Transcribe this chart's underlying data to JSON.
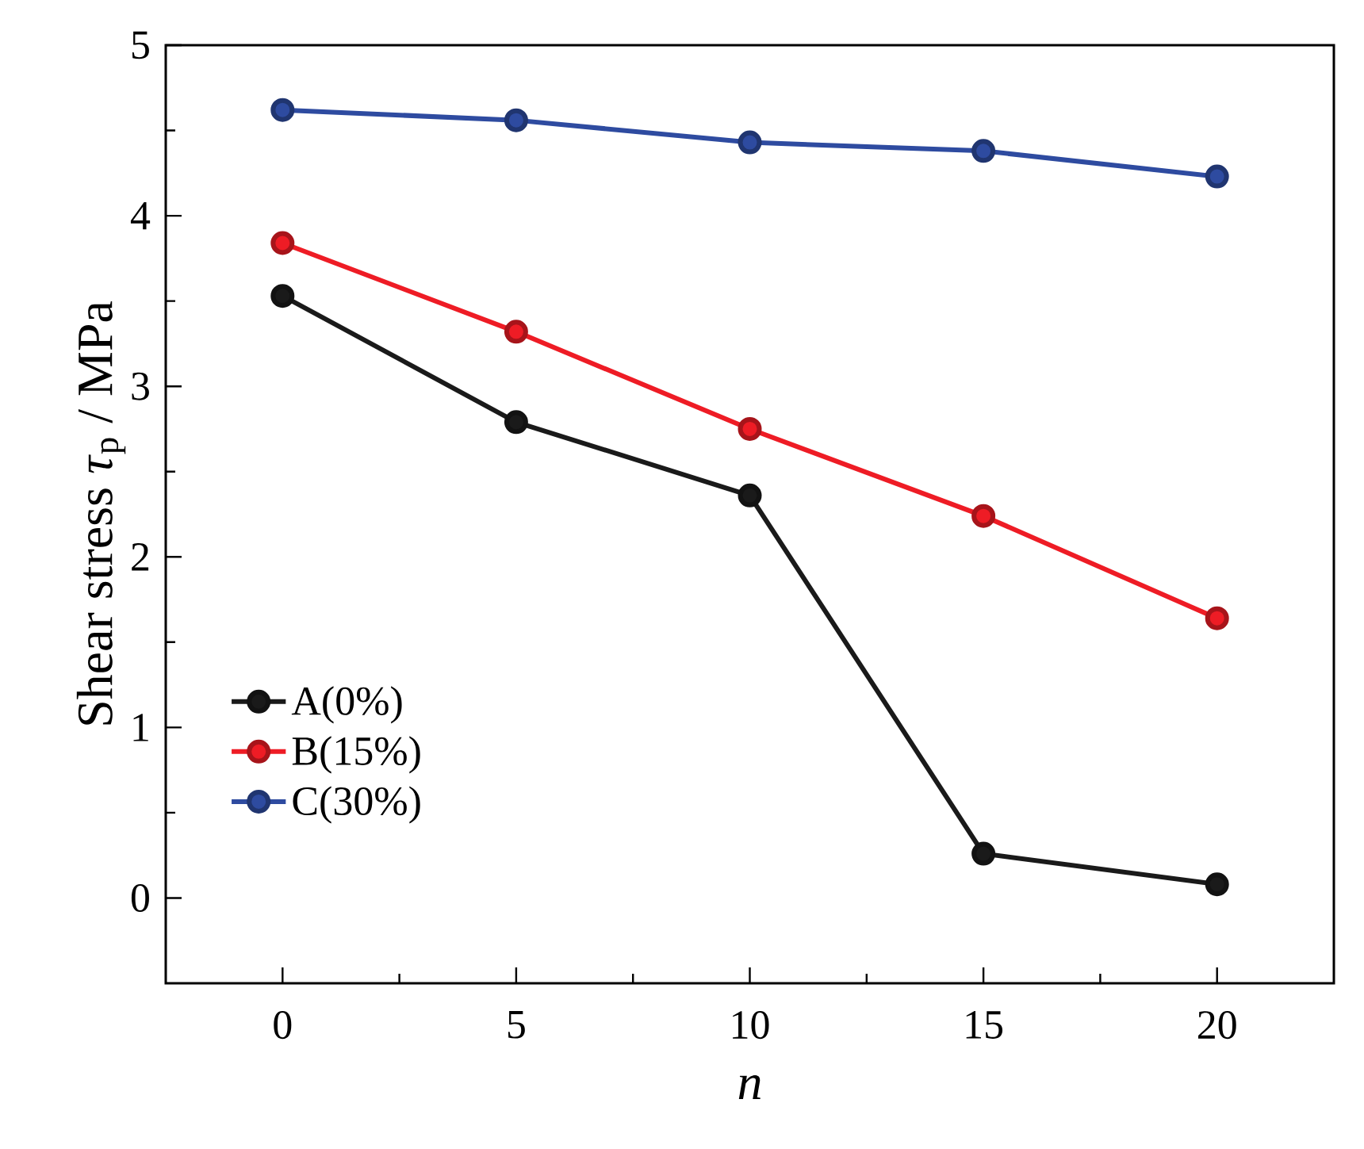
{
  "chart_data": {
    "type": "line",
    "xlabel": "n",
    "ylabel": "Shear stress *τ*$_{p}$ / MPa",
    "x": [
      0,
      5,
      10,
      15,
      20
    ],
    "series": [
      {
        "name": "A(0%)",
        "color": "#1a1a1a",
        "values": [
          3.53,
          2.79,
          2.36,
          0.26,
          0.08
        ]
      },
      {
        "name": "B(15%)",
        "color": "#ee1c25",
        "values": [
          3.84,
          3.32,
          2.75,
          2.24,
          1.64
        ]
      },
      {
        "name": "C(30%)",
        "color": "#2e4ba0",
        "values": [
          4.62,
          4.56,
          4.43,
          4.38,
          4.23
        ]
      }
    ],
    "xlim": [
      -2.5,
      22.5
    ],
    "ylim": [
      -0.5,
      5
    ],
    "xticks": [
      0,
      5,
      10,
      15,
      20
    ],
    "yticks": [
      0,
      1,
      2,
      3,
      4,
      5
    ],
    "grid": false,
    "legend": "bottom left",
    "marker": "circle",
    "line_style": "solid"
  }
}
